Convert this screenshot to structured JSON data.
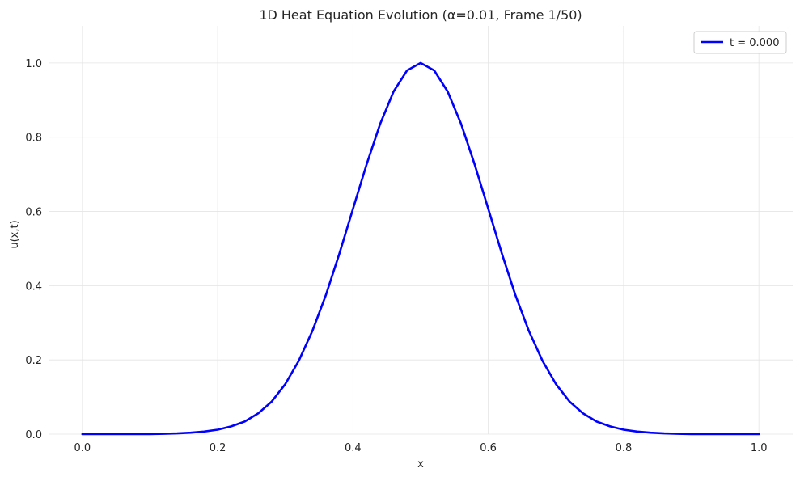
{
  "chart_data": {
    "type": "line",
    "title": "1D Heat Equation Evolution (α=0.01, Frame 1/50)",
    "xlabel": "x",
    "ylabel": "u(x,t)",
    "xlim": [
      -0.05,
      1.05
    ],
    "ylim": [
      0.0,
      1.1
    ],
    "xticks": [
      0.0,
      0.2,
      0.4,
      0.6,
      0.8,
      1.0
    ],
    "xtick_labels": [
      "0.0",
      "0.2",
      "0.4",
      "0.6",
      "0.8",
      "1.0"
    ],
    "yticks": [
      0.0,
      0.2,
      0.4,
      0.6,
      0.8,
      1.0
    ],
    "ytick_labels": [
      "0.0",
      "0.2",
      "0.4",
      "0.6",
      "0.8",
      "1.0"
    ],
    "grid": true,
    "legend_position": "top-right",
    "series": [
      {
        "name": "t = 0.000",
        "color": "#0000ff",
        "x": [
          0.0,
          0.02,
          0.04,
          0.06,
          0.08,
          0.1,
          0.12,
          0.14,
          0.16,
          0.18,
          0.2,
          0.22,
          0.24,
          0.26,
          0.28,
          0.3,
          0.32,
          0.34,
          0.36,
          0.38,
          0.4,
          0.42,
          0.44,
          0.46,
          0.48,
          0.5,
          0.52,
          0.54,
          0.56,
          0.58,
          0.6,
          0.62,
          0.64,
          0.66,
          0.68,
          0.7,
          0.72,
          0.74,
          0.76,
          0.78,
          0.8,
          0.82,
          0.84,
          0.86,
          0.88,
          0.9,
          0.92,
          0.94,
          0.96,
          0.98,
          1.0
        ],
        "y": [
          0.0,
          0.0,
          0.0,
          0.0,
          0.0,
          0.0,
          0.001,
          0.002,
          0.004,
          0.007,
          0.012,
          0.021,
          0.034,
          0.056,
          0.088,
          0.135,
          0.198,
          0.278,
          0.375,
          0.487,
          0.607,
          0.726,
          0.835,
          0.923,
          0.98,
          1.0,
          0.98,
          0.923,
          0.835,
          0.726,
          0.607,
          0.487,
          0.375,
          0.278,
          0.198,
          0.135,
          0.088,
          0.056,
          0.034,
          0.021,
          0.012,
          0.007,
          0.004,
          0.002,
          0.001,
          0.0,
          0.0,
          0.0,
          0.0,
          0.0,
          0.0
        ]
      }
    ]
  }
}
